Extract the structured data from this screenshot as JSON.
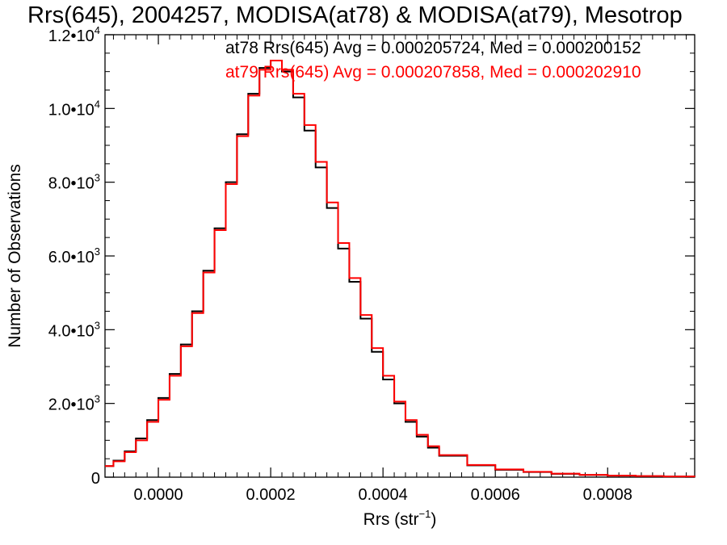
{
  "chart_data": {
    "type": "line",
    "title": "Rrs(645), 2004257, MODISA(at78) & MODISA(at79), Mesotrop",
    "xlabel": "Rrs (str",
    "xlabel_sup": "−1",
    "xlabel_close": ")",
    "ylabel": "Number of Observations",
    "xlim": [
      -9.5e-05,
      0.000955
    ],
    "ylim": [
      0,
      12000
    ],
    "x_ticks": [
      {
        "value": 0.0,
        "label": "0.0000"
      },
      {
        "value": 0.0002,
        "label": "0.0002"
      },
      {
        "value": 0.0004,
        "label": "0.0004"
      },
      {
        "value": 0.0006,
        "label": "0.0006"
      },
      {
        "value": 0.0008,
        "label": "0.0008"
      }
    ],
    "y_ticks": [
      {
        "value": 0,
        "label": "0",
        "exp": ""
      },
      {
        "value": 2000,
        "label": "2.0•10",
        "exp": "3"
      },
      {
        "value": 4000,
        "label": "4.0•10",
        "exp": "3"
      },
      {
        "value": 6000,
        "label": "6.0•10",
        "exp": "3"
      },
      {
        "value": 8000,
        "label": "8.0•10",
        "exp": "3"
      },
      {
        "value": 10000,
        "label": "1.0•10",
        "exp": "4"
      },
      {
        "value": 12000,
        "label": "1.2•10",
        "exp": "4"
      }
    ],
    "grid": false,
    "series": [
      {
        "name": "at78",
        "color": "#000000",
        "annotation": "at78 Rrs(645) Avg = 0.000205724, Med = 0.000200152",
        "x": [
          -9.5e-05,
          -8e-05,
          -6e-05,
          -4e-05,
          -2e-05,
          0.0,
          2e-05,
          4e-05,
          6e-05,
          8e-05,
          0.0001,
          0.00012,
          0.00014,
          0.00016,
          0.00018,
          0.0002,
          0.00022,
          0.00024,
          0.00026,
          0.00028,
          0.0003,
          0.00032,
          0.00034,
          0.00036,
          0.00038,
          0.0004,
          0.00042,
          0.00044,
          0.00046,
          0.00048,
          0.0005,
          0.00055,
          0.0006,
          0.00065,
          0.0007,
          0.00075,
          0.0008,
          0.00085,
          0.0009,
          0.000955
        ],
        "values": [
          300,
          450,
          700,
          1050,
          1550,
          2150,
          2800,
          3600,
          4500,
          5600,
          6750,
          8000,
          9300,
          10400,
          11100,
          11300,
          11000,
          10300,
          9400,
          8400,
          7300,
          6200,
          5300,
          4300,
          3400,
          2650,
          2000,
          1500,
          1100,
          800,
          580,
          320,
          200,
          140,
          90,
          60,
          40,
          28,
          18,
          10
        ]
      },
      {
        "name": "at79",
        "color": "#ff0000",
        "annotation": "at79 Rrs(645) Avg = 0.000207858, Med = 0.000202910",
        "x": [
          -9.5e-05,
          -8e-05,
          -6e-05,
          -4e-05,
          -2e-05,
          0.0,
          2e-05,
          4e-05,
          6e-05,
          8e-05,
          0.0001,
          0.00012,
          0.00014,
          0.00016,
          0.00018,
          0.0002,
          0.00022,
          0.00024,
          0.00026,
          0.00028,
          0.0003,
          0.00032,
          0.00034,
          0.00036,
          0.00038,
          0.0004,
          0.00042,
          0.00044,
          0.00046,
          0.00048,
          0.0005,
          0.00055,
          0.0006,
          0.00065,
          0.0007,
          0.00075,
          0.0008,
          0.00085,
          0.0009,
          0.000955
        ],
        "values": [
          300,
          430,
          680,
          1000,
          1500,
          2100,
          2750,
          3550,
          4450,
          5550,
          6700,
          7950,
          9250,
          10350,
          11050,
          11300,
          11050,
          10400,
          9550,
          8550,
          7450,
          6350,
          5400,
          4400,
          3500,
          2750,
          2050,
          1550,
          1150,
          840,
          600,
          330,
          210,
          145,
          95,
          62,
          42,
          29,
          19,
          11
        ]
      }
    ]
  }
}
